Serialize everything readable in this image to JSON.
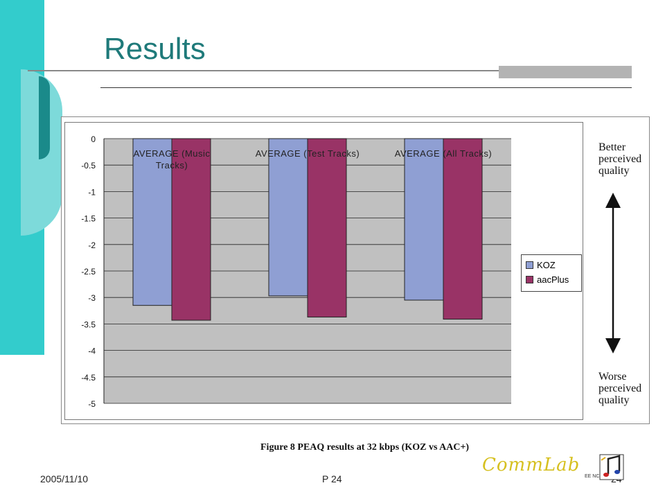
{
  "slide": {
    "title": "Results",
    "footer_date": "2005/11/10",
    "footer_page": "P 24",
    "footer_number": "24",
    "caption": "Figure 8  PEAQ results at 32 kbps (KOZ  vs AAC+)",
    "logo_text": "CommLab",
    "logo_small": "EE NCTU"
  },
  "annotations": {
    "better": [
      "Better",
      "perceived",
      "quality"
    ],
    "worse": [
      "Worse",
      "perceived",
      "quality"
    ]
  },
  "chart_data": {
    "type": "bar",
    "categories": [
      [
        "AVERAGE (Music",
        "Tracks)"
      ],
      [
        "AVERAGE (Test Tracks)"
      ],
      [
        "AVERAGE (All Tracks)"
      ]
    ],
    "series": [
      {
        "name": "KOZ",
        "values": [
          -3.15,
          -2.97,
          -3.05
        ],
        "color": "#8f9fd3"
      },
      {
        "name": "aacPlus",
        "values": [
          -3.43,
          -3.37,
          -3.41
        ],
        "color": "#993366"
      }
    ],
    "ylim": [
      -5,
      0
    ],
    "yticks": [
      "0",
      "-0.5",
      "-1",
      "-1.5",
      "-2",
      "-2.5",
      "-3",
      "-3.5",
      "-4",
      "-4.5",
      "-5"
    ],
    "ytick_values": [
      0,
      -0.5,
      -1,
      -1.5,
      -2,
      -2.5,
      -3,
      -3.5,
      -4,
      -4.5,
      -5
    ],
    "grid": true,
    "plot_background": "#c0c0c0",
    "legend_position": "right"
  }
}
